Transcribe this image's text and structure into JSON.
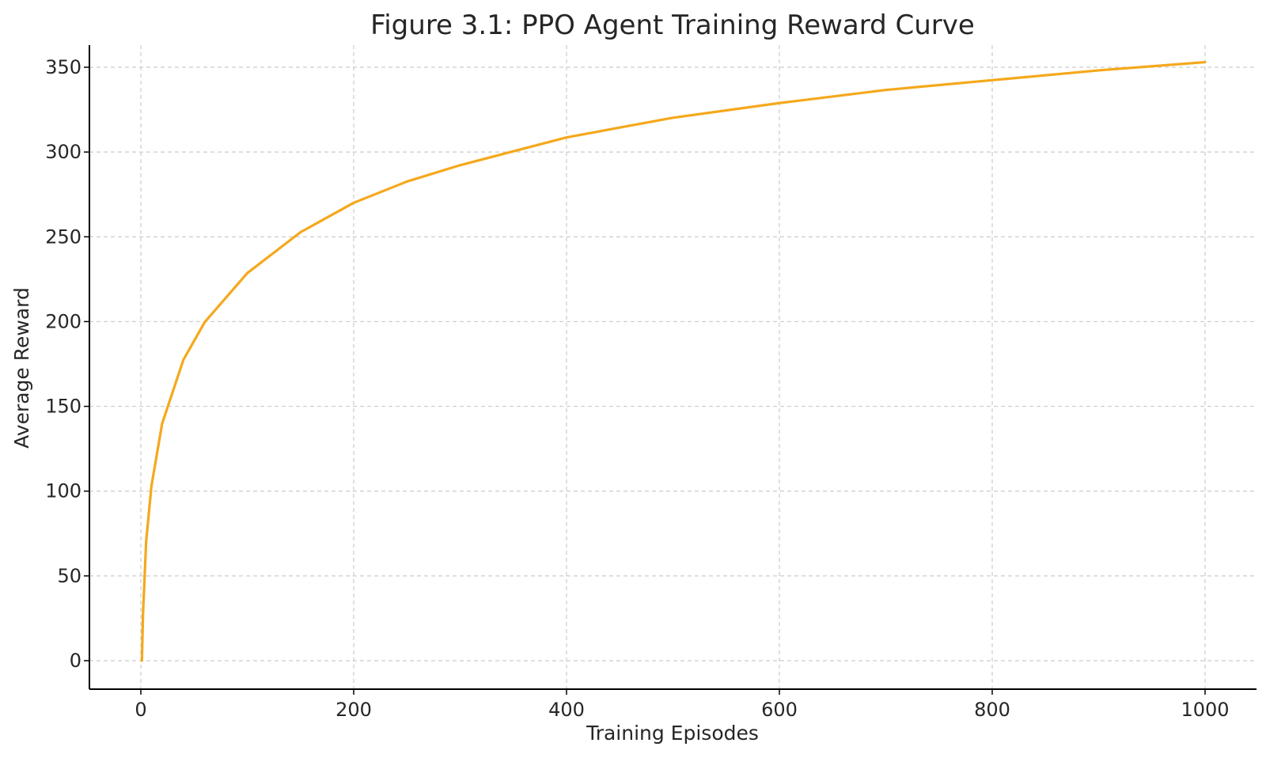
{
  "chart_data": {
    "type": "line",
    "title": "Figure 3.1: PPO Agent Training Reward Curve",
    "xlabel": "Training Episodes",
    "ylabel": "Average Reward",
    "xlim": [
      -50,
      1050
    ],
    "ylim": [
      -17,
      350
    ],
    "xticks": [
      0,
      200,
      400,
      600,
      800,
      1000
    ],
    "yticks": [
      0,
      50,
      100,
      150,
      200,
      250,
      300,
      350
    ],
    "grid": true,
    "legend": "none",
    "series": [
      {
        "color": "#F5A81C",
        "x": [
          1,
          2,
          5,
          10,
          20,
          40,
          60,
          100,
          150,
          200,
          250,
          300,
          400,
          500,
          600,
          700,
          800,
          900,
          1000
        ],
        "y": [
          0,
          28,
          73,
          107,
          145,
          184,
          207,
          237,
          262,
          280,
          293,
          303,
          320,
          332,
          341,
          349,
          355,
          361,
          366
        ]
      }
    ]
  }
}
